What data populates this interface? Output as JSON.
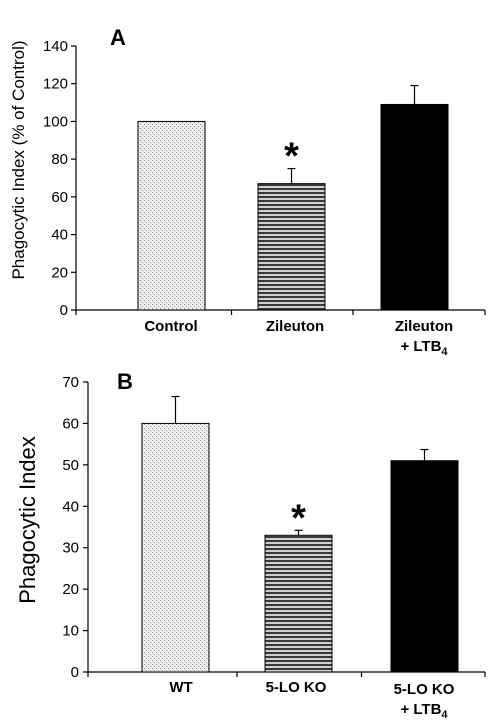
{
  "chart_data": [
    {
      "type": "bar",
      "panel_label": "A",
      "ylabel": "Phagocytic Index (% of Control)",
      "ylim": [
        0,
        140
      ],
      "yticks": [
        0,
        20,
        40,
        60,
        80,
        100,
        120,
        140
      ],
      "categories": [
        {
          "line1": "Control",
          "line2": ""
        },
        {
          "line1": "Zileuton",
          "line2": ""
        },
        {
          "line1": "Zileuton",
          "line2": "+ LTB",
          "sub": "4"
        }
      ],
      "values": [
        100,
        67,
        109
      ],
      "errors": [
        0,
        8,
        10
      ],
      "significance": [
        "",
        "*",
        ""
      ],
      "fills": [
        "dotted-light",
        "horizontal-stripes",
        "solid-black"
      ]
    },
    {
      "type": "bar",
      "panel_label": "B",
      "ylabel": "Phagocytic Index",
      "ylim": [
        0,
        70
      ],
      "yticks": [
        0,
        10,
        20,
        30,
        40,
        50,
        60,
        70
      ],
      "categories": [
        {
          "line1": "WT",
          "line2": ""
        },
        {
          "line1": "5-LO KO",
          "line2": ""
        },
        {
          "line1": "5-LO KO",
          "line2": "+ LTB",
          "sub": "4"
        }
      ],
      "values": [
        60,
        33,
        51
      ],
      "errors": [
        6.5,
        1.2,
        2.7
      ],
      "significance": [
        "",
        "*",
        ""
      ],
      "fills": [
        "dotted-light",
        "horizontal-stripes",
        "solid-black"
      ]
    }
  ],
  "colors": {
    "bar_dark": "#000000",
    "bar_light": "#e4e4e4",
    "stripe": "#555555"
  }
}
